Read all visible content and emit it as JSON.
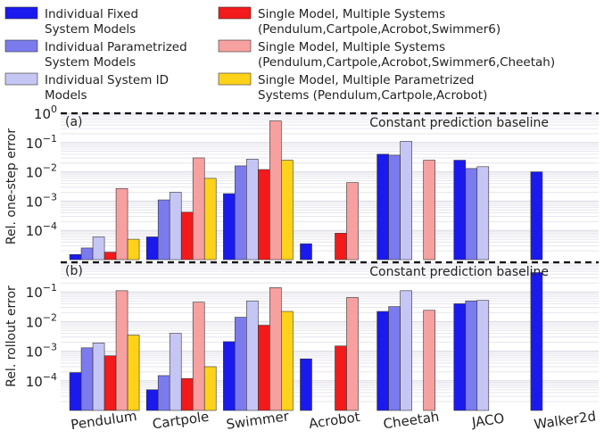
{
  "chart_data": {
    "type": "bar",
    "yscale": "log",
    "categories": [
      "Pendulum",
      "Cartpole",
      "Swimmer",
      "Acrobot",
      "Cheetah",
      "JACO",
      "Walker2d"
    ],
    "legend": [
      {
        "name": "Individual Fixed System Models",
        "lines": [
          "Individual Fixed",
          "System Models"
        ],
        "color": "#1a1aee"
      },
      {
        "name": "Individual Parametrized System Models",
        "lines": [
          "Individual Parametrized",
          "System Models"
        ],
        "color": "#7b7bee"
      },
      {
        "name": "Individual System ID Models",
        "lines": [
          "Individual System ID",
          "Models"
        ],
        "color": "#c6c6f5"
      },
      {
        "name": "Single Model, Multiple Systems (Pendulum,Cartpole,Acrobot,Swimmer6)",
        "lines": [
          "Single Model, Multiple Systems",
          "(Pendulum,Cartpole,Acrobot,Swimmer6)"
        ],
        "color": "#f21a1a"
      },
      {
        "name": "Single Model, Multiple Systems (Pendulum,Cartpole,Acrobot,Swimmer6,Cheetah)",
        "lines": [
          "Single Model, Multiple Systems",
          "(Pendulum,Cartpole,Acrobot,Swimmer6,Cheetah)"
        ],
        "color": "#f7a0a0"
      },
      {
        "name": "Single Model, Multiple Parametrized Systems (Pendulum,Cartpole,Acrobot)",
        "lines": [
          "Single Model, Multiple Parametrized",
          "Systems (Pendulum,Cartpole,Acrobot)"
        ],
        "color": "#ffd21a"
      }
    ],
    "baseline_label": "Constant prediction baseline",
    "baseline_value": 1,
    "panels": [
      {
        "label": "(a)",
        "ylabel": "Rel. one-step error",
        "ylim": [
          1e-05,
          1
        ],
        "yticks": [
          {
            "value": 1,
            "label": "10^0"
          },
          {
            "value": 0.1,
            "label": "10^-1"
          },
          {
            "value": 0.01,
            "label": "10^-2"
          },
          {
            "value": 0.001,
            "label": "10^-3"
          },
          {
            "value": 0.0001,
            "label": "10^-4"
          }
        ],
        "series": [
          {
            "name": "Individual Fixed System Models",
            "values": [
              1.5e-05,
              6e-05,
              0.0018,
              3.5e-05,
              0.04,
              0.025,
              0.01
            ]
          },
          {
            "name": "Individual Parametrized System Models",
            "values": [
              2.5e-05,
              0.0011,
              0.016,
              null,
              0.037,
              0.013,
              null
            ]
          },
          {
            "name": "Individual System ID Models",
            "values": [
              6e-05,
              0.002,
              0.027,
              null,
              0.11,
              0.015,
              null
            ]
          },
          {
            "name": "Single Model, Multiple Systems (Pendulum,Cartpole,Acrobot,Swimmer6)",
            "values": [
              1.8e-05,
              0.00042,
              0.012,
              8e-05,
              null,
              null,
              null
            ]
          },
          {
            "name": "Single Model, Multiple Systems (Pendulum,Cartpole,Acrobot,Swimmer6,Cheetah)",
            "values": [
              0.0027,
              0.03,
              0.55,
              0.0043,
              0.025,
              null,
              null
            ]
          },
          {
            "name": "Single Model, Multiple Parametrized Systems (Pendulum,Cartpole,Acrobot)",
            "values": [
              5e-05,
              0.006,
              0.025,
              null,
              null,
              null,
              null
            ]
          }
        ]
      },
      {
        "label": "(b)",
        "ylabel": "Rel. rollout error",
        "ylim": [
          1e-05,
          1
        ],
        "yticks": [
          {
            "value": 0.1,
            "label": "10^-1"
          },
          {
            "value": 0.01,
            "label": "10^-2"
          },
          {
            "value": 0.001,
            "label": "10^-3"
          },
          {
            "value": 0.0001,
            "label": "10^-4"
          }
        ],
        "series": [
          {
            "name": "Individual Fixed System Models",
            "values": [
              0.00019,
              5e-05,
              0.0021,
              0.00055,
              0.022,
              0.04,
              0.45
            ]
          },
          {
            "name": "Individual Parametrized System Models",
            "values": [
              0.0013,
              0.00015,
              0.014,
              null,
              0.032,
              0.05,
              null
            ]
          },
          {
            "name": "Individual System ID Models",
            "values": [
              0.0019,
              0.004,
              0.05,
              null,
              0.11,
              0.052,
              null
            ]
          },
          {
            "name": "Single Model, Multiple Systems (Pendulum,Cartpole,Acrobot,Swimmer6)",
            "values": [
              0.0007,
              0.00012,
              0.0075,
              0.0015,
              null,
              null,
              null
            ]
          },
          {
            "name": "Single Model, Multiple Systems (Pendulum,Cartpole,Acrobot,Swimmer6,Cheetah)",
            "values": [
              0.11,
              0.045,
              0.14,
              0.065,
              0.024,
              null,
              null
            ]
          },
          {
            "name": "Single Model, Multiple Parametrized Systems (Pendulum,Cartpole,Acrobot)",
            "values": [
              0.0035,
              0.0003,
              0.022,
              null,
              null,
              null,
              null
            ]
          }
        ]
      }
    ]
  }
}
